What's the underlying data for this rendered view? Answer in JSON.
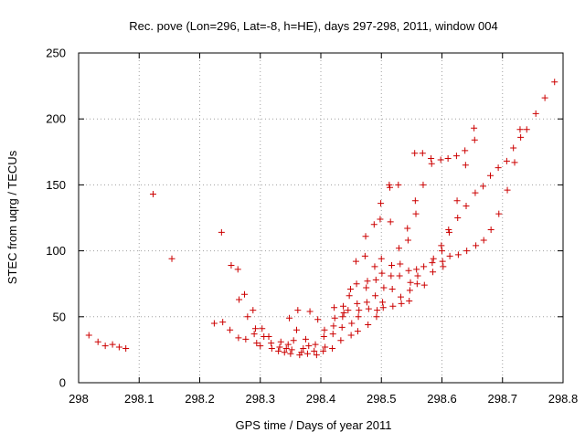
{
  "chart_data": {
    "type": "scatter",
    "title": "Rec. pove (Lon=296, Lat=-8, h=HE), days 297-298, 2011, window 004",
    "xlabel": "GPS time / Days of year 2011",
    "ylabel": "STEC from uqrg / TECUs",
    "xlim": [
      298,
      298.8
    ],
    "ylim": [
      0,
      250
    ],
    "x_ticks": [
      298,
      298.1,
      298.2,
      298.3,
      298.4,
      298.5,
      298.6,
      298.7,
      298.8
    ],
    "x_tick_labels": [
      "298",
      "298.1",
      "298.2",
      "298.3",
      "298.4",
      "298.5",
      "298.6",
      "298.7",
      "298.8"
    ],
    "y_ticks": [
      0,
      50,
      100,
      150,
      200,
      250
    ],
    "y_tick_labels": [
      "0",
      "50",
      "100",
      "150",
      "200",
      "250"
    ],
    "grid": true,
    "marker": "+",
    "marker_color": "#cc0000",
    "points": [
      [
        298.017,
        36
      ],
      [
        298.032,
        31
      ],
      [
        298.044,
        28
      ],
      [
        298.056,
        29
      ],
      [
        298.067,
        27
      ],
      [
        298.078,
        26
      ],
      [
        298.123,
        143
      ],
      [
        298.154,
        94
      ],
      [
        298.224,
        45
      ],
      [
        298.236,
        114
      ],
      [
        298.238,
        46
      ],
      [
        298.25,
        40
      ],
      [
        298.252,
        89
      ],
      [
        298.263,
        86
      ],
      [
        298.264,
        34
      ],
      [
        298.265,
        63
      ],
      [
        298.274,
        67
      ],
      [
        298.276,
        33
      ],
      [
        298.279,
        50
      ],
      [
        298.288,
        55
      ],
      [
        298.29,
        37
      ],
      [
        298.292,
        41
      ],
      [
        298.294,
        30
      ],
      [
        298.3,
        28
      ],
      [
        298.303,
        41
      ],
      [
        298.306,
        35
      ],
      [
        298.314,
        35
      ],
      [
        298.318,
        30
      ],
      [
        298.319,
        26
      ],
      [
        298.33,
        24
      ],
      [
        298.332,
        27
      ],
      [
        298.334,
        31
      ],
      [
        298.34,
        23
      ],
      [
        298.343,
        26
      ],
      [
        298.346,
        29
      ],
      [
        298.348,
        49
      ],
      [
        298.35,
        22
      ],
      [
        298.352,
        25
      ],
      [
        298.355,
        32
      ],
      [
        298.36,
        40
      ],
      [
        298.362,
        55
      ],
      [
        298.365,
        21
      ],
      [
        298.368,
        23
      ],
      [
        298.371,
        26
      ],
      [
        298.375,
        33
      ],
      [
        298.378,
        22
      ],
      [
        298.38,
        28
      ],
      [
        298.382,
        54
      ],
      [
        298.389,
        24
      ],
      [
        298.391,
        29
      ],
      [
        298.393,
        21
      ],
      [
        298.395,
        48
      ],
      [
        298.404,
        24
      ],
      [
        298.405,
        35
      ],
      [
        298.406,
        40
      ],
      [
        298.407,
        27
      ],
      [
        298.419,
        26
      ],
      [
        298.42,
        37
      ],
      [
        298.421,
        43
      ],
      [
        298.422,
        57
      ],
      [
        298.423,
        49
      ],
      [
        298.433,
        32
      ],
      [
        298.435,
        42
      ],
      [
        298.436,
        50
      ],
      [
        298.437,
        58
      ],
      [
        298.438,
        53
      ],
      [
        298.445,
        55
      ],
      [
        298.447,
        66
      ],
      [
        298.449,
        71
      ],
      [
        298.45,
        36
      ],
      [
        298.451,
        45
      ],
      [
        298.458,
        92
      ],
      [
        298.459,
        75
      ],
      [
        298.46,
        60
      ],
      [
        298.461,
        39
      ],
      [
        298.462,
        50
      ],
      [
        298.463,
        55
      ],
      [
        298.473,
        96
      ],
      [
        298.474,
        111
      ],
      [
        298.475,
        72
      ],
      [
        298.476,
        61
      ],
      [
        298.477,
        77
      ],
      [
        298.478,
        44
      ],
      [
        298.479,
        56
      ],
      [
        298.488,
        120
      ],
      [
        298.489,
        88
      ],
      [
        298.49,
        66
      ],
      [
        298.491,
        78
      ],
      [
        298.492,
        50
      ],
      [
        298.493,
        55
      ],
      [
        298.498,
        124
      ],
      [
        298.499,
        136
      ],
      [
        298.5,
        94
      ],
      [
        298.501,
        83
      ],
      [
        298.502,
        61
      ],
      [
        298.503,
        57
      ],
      [
        298.504,
        72
      ],
      [
        298.513,
        150
      ],
      [
        298.514,
        148
      ],
      [
        298.515,
        122
      ],
      [
        298.516,
        81
      ],
      [
        298.517,
        89
      ],
      [
        298.518,
        71
      ],
      [
        298.519,
        58
      ],
      [
        298.528,
        150
      ],
      [
        298.529,
        102
      ],
      [
        298.53,
        81
      ],
      [
        298.531,
        90
      ],
      [
        298.532,
        65
      ],
      [
        298.533,
        60
      ],
      [
        298.543,
        117
      ],
      [
        298.544,
        108
      ],
      [
        298.545,
        85
      ],
      [
        298.546,
        62
      ],
      [
        298.547,
        70
      ],
      [
        298.548,
        76
      ],
      [
        298.555,
        174
      ],
      [
        298.556,
        138
      ],
      [
        298.557,
        128
      ],
      [
        298.558,
        86
      ],
      [
        298.559,
        75
      ],
      [
        298.56,
        81
      ],
      [
        298.568,
        174
      ],
      [
        298.569,
        150
      ],
      [
        298.57,
        88
      ],
      [
        298.571,
        74
      ],
      [
        298.582,
        170
      ],
      [
        298.583,
        166
      ],
      [
        298.584,
        91
      ],
      [
        298.585,
        84
      ],
      [
        298.586,
        94
      ],
      [
        298.598,
        169
      ],
      [
        298.599,
        104
      ],
      [
        298.6,
        100
      ],
      [
        298.601,
        92
      ],
      [
        298.602,
        88
      ],
      [
        298.61,
        170
      ],
      [
        298.611,
        116
      ],
      [
        298.612,
        114
      ],
      [
        298.613,
        96
      ],
      [
        298.624,
        172
      ],
      [
        298.625,
        138
      ],
      [
        298.626,
        125
      ],
      [
        298.627,
        97
      ],
      [
        298.638,
        176
      ],
      [
        298.639,
        165
      ],
      [
        298.64,
        134
      ],
      [
        298.641,
        100
      ],
      [
        298.653,
        193
      ],
      [
        298.654,
        184
      ],
      [
        298.655,
        144
      ],
      [
        298.656,
        104
      ],
      [
        298.668,
        149
      ],
      [
        298.669,
        108
      ],
      [
        298.68,
        157
      ],
      [
        298.681,
        116
      ],
      [
        298.693,
        163
      ],
      [
        298.694,
        128
      ],
      [
        298.707,
        168
      ],
      [
        298.708,
        146
      ],
      [
        298.718,
        178
      ],
      [
        298.72,
        167
      ],
      [
        298.729,
        192
      ],
      [
        298.73,
        186
      ],
      [
        298.74,
        192
      ],
      [
        298.755,
        204
      ],
      [
        298.77,
        216
      ],
      [
        298.786,
        228
      ]
    ]
  }
}
